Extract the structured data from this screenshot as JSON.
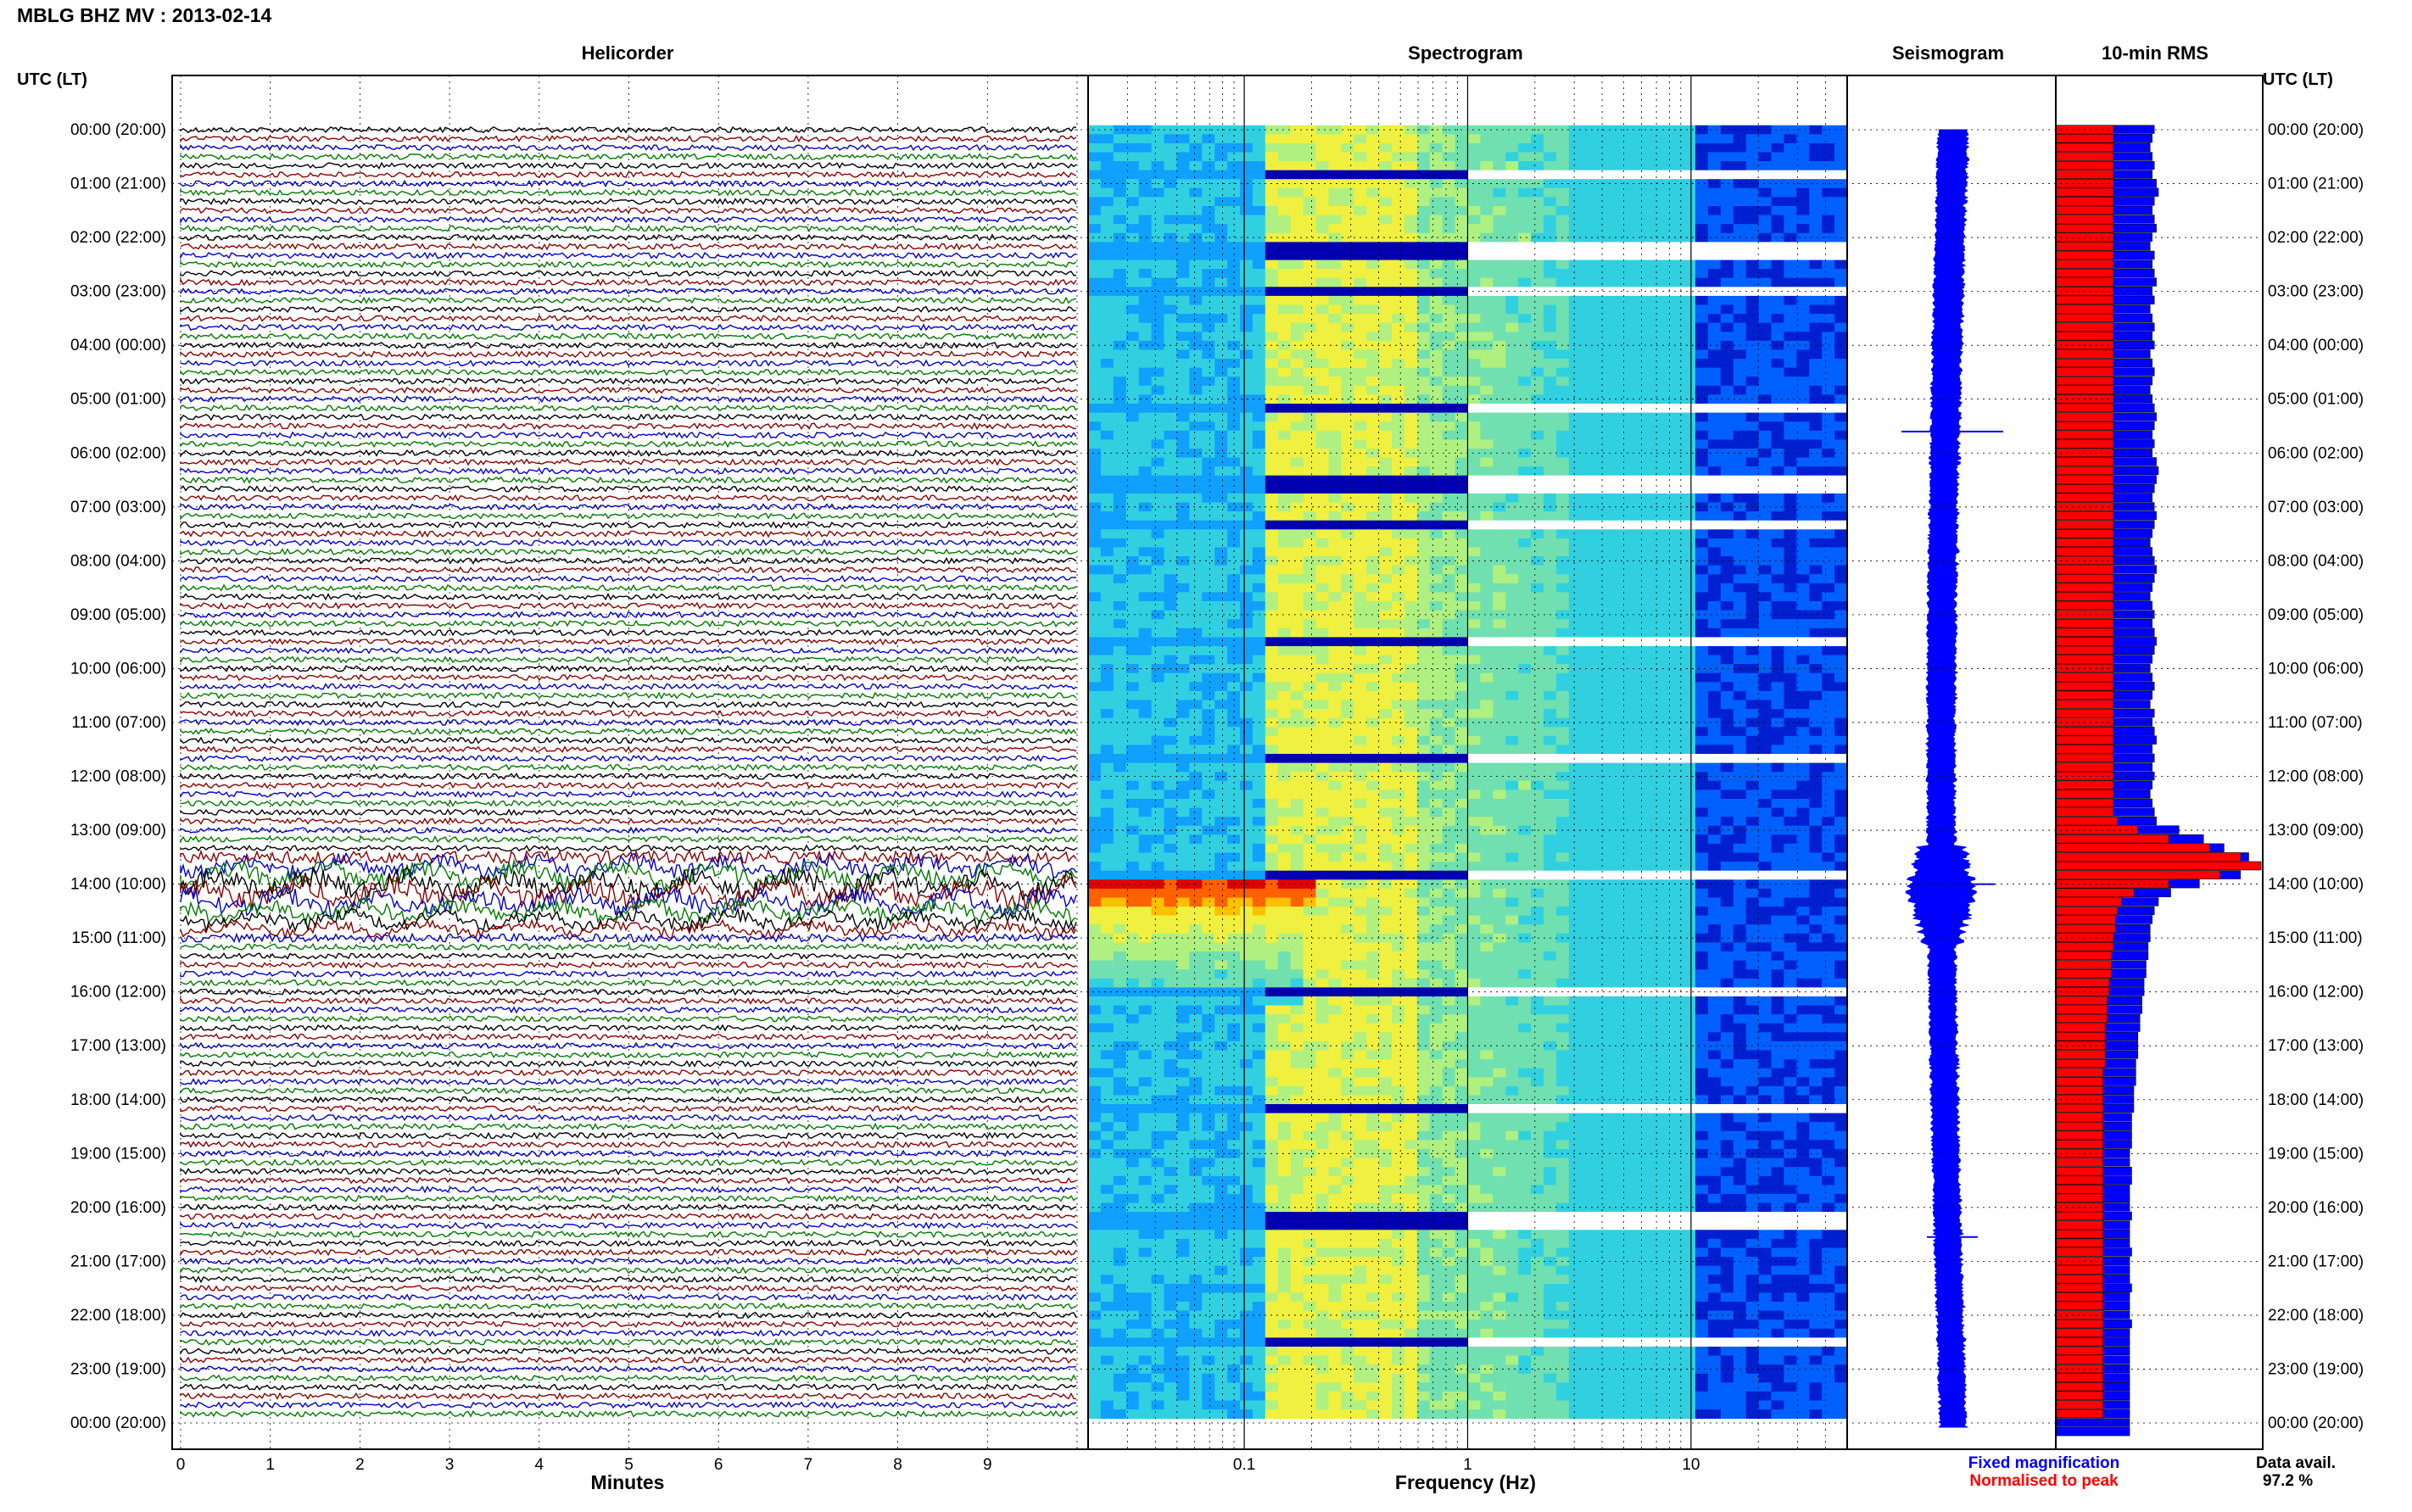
{
  "header": {
    "station_title": "MBLG BHZ MV : 2013-02-14",
    "tz_label_left": "UTC (LT)",
    "tz_label_right": "UTC (LT)"
  },
  "panels": {
    "helicorder": "Helicorder",
    "spectrogram": "Spectrogram",
    "seismogram": "Seismogram",
    "rms": "10-min RMS"
  },
  "axes": {
    "helicorder_xlabel": "Minutes",
    "spectrogram_xlabel": "Frequency (Hz)",
    "minute_ticks": [
      "0",
      "1",
      "2",
      "3",
      "4",
      "5",
      "6",
      "7",
      "8",
      "9"
    ],
    "freq_ticks": [
      "0.1",
      "1",
      "10"
    ]
  },
  "legend": {
    "fixed": "Fixed magnification",
    "normalised": "Normalised to peak",
    "fixed_color": "#0000ff",
    "normalised_color": "#ff0000"
  },
  "availability": {
    "label": "Data avail.",
    "value": "97.2 %"
  },
  "colors": {
    "trace_black": "#000000",
    "trace_red": "#8b0000",
    "trace_blue": "#0000cd",
    "trace_green": "#007a00",
    "seismogram": "#0000ff",
    "rms_fixed": "#0000ff",
    "rms_normalised": "#ff0000"
  },
  "chart_data": {
    "type": "heatmap",
    "time_labels_utc_lt": [
      "00:00 (20:00)",
      "01:00 (21:00)",
      "02:00 (22:00)",
      "03:00 (23:00)",
      "04:00 (00:00)",
      "05:00 (01:00)",
      "06:00 (02:00)",
      "07:00 (03:00)",
      "08:00 (04:00)",
      "09:00 (05:00)",
      "10:00 (06:00)",
      "11:00 (07:00)",
      "12:00 (08:00)",
      "13:00 (09:00)",
      "14:00 (10:00)",
      "15:00 (11:00)",
      "16:00 (12:00)",
      "17:00 (13:00)",
      "18:00 (14:00)",
      "19:00 (15:00)",
      "20:00 (16:00)",
      "21:00 (17:00)",
      "22:00 (18:00)",
      "23:00 (19:00)",
      "00:00 (20:00)"
    ],
    "minutes_range": [
      0,
      10
    ],
    "frequency_range_hz": [
      0.02,
      50
    ],
    "frequency_scale": "log",
    "rms_fixed_relative": [
      0.48,
      0.47,
      0.46,
      0.47,
      0.48,
      0.47,
      0.49,
      0.5,
      0.48,
      0.47,
      0.48,
      0.49,
      0.47,
      0.46,
      0.48,
      0.47,
      0.48,
      0.49,
      0.47,
      0.48,
      0.46,
      0.47,
      0.48,
      0.47,
      0.48,
      0.46,
      0.47,
      0.48,
      0.47,
      0.46,
      0.47,
      0.48,
      0.49,
      0.48,
      0.47,
      0.48,
      0.47,
      0.49,
      0.5,
      0.49,
      0.48,
      0.47,
      0.48,
      0.49,
      0.48,
      0.47,
      0.46,
      0.47,
      0.48,
      0.49,
      0.48,
      0.47,
      0.46,
      0.47,
      0.48,
      0.47,
      0.48,
      0.49,
      0.48,
      0.47,
      0.46,
      0.47,
      0.48,
      0.47,
      0.46,
      0.48,
      0.47,
      0.48,
      0.49,
      0.47,
      0.48,
      0.47,
      0.48,
      0.47,
      0.46,
      0.47,
      0.48,
      0.49,
      0.6,
      0.72,
      0.82,
      0.94,
      1.0,
      0.9,
      0.7,
      0.56,
      0.5,
      0.48,
      0.47,
      0.46,
      0.46,
      0.45,
      0.45,
      0.44,
      0.44,
      0.43,
      0.43,
      0.42,
      0.42,
      0.41,
      0.41,
      0.4,
      0.4,
      0.4,
      0.39,
      0.39,
      0.39,
      0.38,
      0.38,
      0.38,
      0.37,
      0.37,
      0.37,
      0.37,
      0.36,
      0.36,
      0.37,
      0.37,
      0.36,
      0.36,
      0.36,
      0.37,
      0.36,
      0.36,
      0.36,
      0.37,
      0.36,
      0.36,
      0.36,
      0.37,
      0.36,
      0.36,
      0.36,
      0.37,
      0.36,
      0.36,
      0.36,
      0.36,
      0.36,
      0.36,
      0.36,
      0.36,
      0.36,
      0.36,
      0.36,
      0.36
    ],
    "rms_normalised_relative": [
      0.28,
      0.28,
      0.28,
      0.28,
      0.28,
      0.28,
      0.28,
      0.28,
      0.28,
      0.28,
      0.28,
      0.28,
      0.28,
      0.28,
      0.28,
      0.28,
      0.28,
      0.28,
      0.28,
      0.28,
      0.28,
      0.28,
      0.28,
      0.28,
      0.28,
      0.28,
      0.28,
      0.28,
      0.28,
      0.28,
      0.28,
      0.28,
      0.28,
      0.28,
      0.28,
      0.28,
      0.28,
      0.28,
      0.28,
      0.28,
      0.28,
      0.28,
      0.28,
      0.28,
      0.28,
      0.28,
      0.28,
      0.28,
      0.28,
      0.28,
      0.28,
      0.28,
      0.28,
      0.28,
      0.28,
      0.28,
      0.28,
      0.28,
      0.28,
      0.28,
      0.28,
      0.28,
      0.28,
      0.28,
      0.28,
      0.28,
      0.28,
      0.28,
      0.28,
      0.28,
      0.28,
      0.28,
      0.28,
      0.28,
      0.28,
      0.28,
      0.28,
      0.3,
      0.4,
      0.55,
      0.75,
      0.9,
      1.0,
      0.8,
      0.55,
      0.38,
      0.32,
      0.3,
      0.29,
      0.29,
      0.28,
      0.28,
      0.27,
      0.27,
      0.27,
      0.26,
      0.26,
      0.25,
      0.25,
      0.25,
      0.24,
      0.24,
      0.24,
      0.24,
      0.24,
      0.23,
      0.23,
      0.23,
      0.23,
      0.23,
      0.23,
      0.23,
      0.23,
      0.23,
      0.23,
      0.23,
      0.23,
      0.23,
      0.23,
      0.23,
      0.23,
      0.23,
      0.23,
      0.23,
      0.23,
      0.23,
      0.23,
      0.23,
      0.23,
      0.23,
      0.23,
      0.23,
      0.23,
      0.23,
      0.23,
      0.23,
      0.23,
      0.23,
      0.23,
      0.23,
      0.23,
      0.23,
      0.23,
      0.23
    ]
  }
}
